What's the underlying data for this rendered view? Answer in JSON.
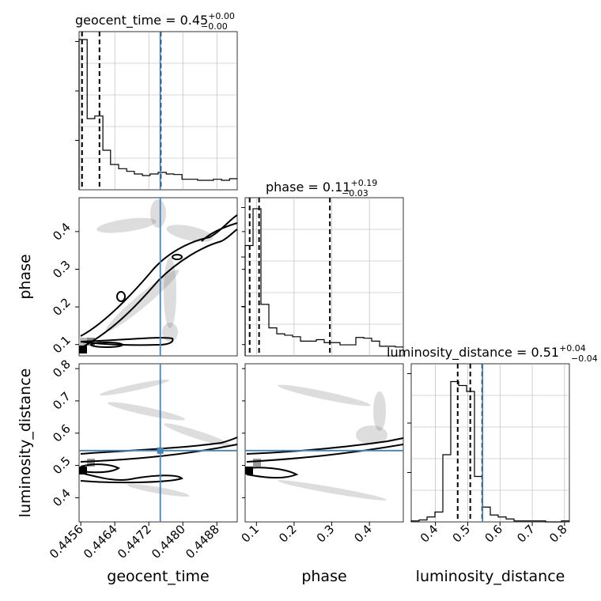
{
  "chart_data": {
    "type": "corner",
    "parameters": [
      "geocent_time",
      "phase",
      "luminosity_distance"
    ],
    "panel_titles": {
      "geocent_time": {
        "prefix": "geocent_time = 0.45",
        "plus": "+0.00",
        "minus": "−0.00"
      },
      "phase": {
        "prefix": "phase = 0.11",
        "plus": "+0.19",
        "minus": "−0.03"
      },
      "luminosity_distance": {
        "prefix": "luminosity_distance = 0.51",
        "plus": "+0.04",
        "minus": "−0.04"
      }
    },
    "axis_labels": {
      "x": [
        "geocent_time",
        "phase",
        "luminosity_distance"
      ],
      "y": [
        "phase",
        "luminosity_distance"
      ]
    },
    "ranges": {
      "geocent_time": [
        0.44556,
        0.44928
      ],
      "phase": [
        0.07,
        0.49
      ],
      "luminosity_distance": [
        0.325,
        0.815
      ]
    },
    "ticks": {
      "geocent_time": [
        "0.4456",
        "0.4464",
        "0.4472",
        "0.4480",
        "0.4488"
      ],
      "phase": [
        "0.1",
        "0.2",
        "0.3",
        "0.4"
      ],
      "luminosity_distance": [
        "0.4",
        "0.5",
        "0.6",
        "0.7",
        "0.8"
      ]
    },
    "truths": {
      "geocent_time": 0.44747,
      "phase": null,
      "luminosity_distance": 0.546
    },
    "quantiles": {
      "geocent_time": [
        0.44563,
        0.44604,
        0.44748
      ],
      "phase": [
        0.082,
        0.107,
        0.295
      ],
      "luminosity_distance": [
        0.469,
        0.508,
        0.545
      ]
    },
    "histograms": {
      "geocent_time": {
        "edges": [
          0.44556,
          0.44575,
          0.44593,
          0.44612,
          0.4463,
          0.44649,
          0.44668,
          0.44686,
          0.44705,
          0.44723,
          0.44742,
          0.44761,
          0.44779,
          0.44798,
          0.44816,
          0.44835,
          0.44854,
          0.44872,
          0.44891,
          0.4491,
          0.44928
        ],
        "counts": [
          285,
          135,
          140,
          75,
          48,
          40,
          35,
          30,
          27,
          30,
          33,
          30,
          29,
          20,
          20,
          18,
          18,
          20,
          18,
          21
        ],
        "ymax": 300
      },
      "phase": {
        "edges": [
          0.07,
          0.091,
          0.112,
          0.133,
          0.154,
          0.175,
          0.196,
          0.217,
          0.238,
          0.259,
          0.28,
          0.301,
          0.322,
          0.343,
          0.364,
          0.385,
          0.406,
          0.427,
          0.448,
          0.469,
          0.49
        ],
        "counts": [
          150,
          200,
          70,
          38,
          30,
          28,
          26,
          20,
          20,
          22,
          18,
          18,
          15,
          15,
          25,
          24,
          20,
          13,
          13,
          12
        ],
        "ymax": 215
      },
      "luminosity_distance": {
        "edges": [
          0.325,
          0.3495,
          0.374,
          0.3985,
          0.423,
          0.4475,
          0.472,
          0.4965,
          0.521,
          0.5455,
          0.57,
          0.5945,
          0.619,
          0.6435,
          0.668,
          0.6925,
          0.717,
          0.7415,
          0.766,
          0.7905,
          0.815
        ],
        "counts": [
          1,
          2,
          5,
          10,
          68,
          142,
          138,
          132,
          46,
          15,
          7,
          5,
          3,
          1,
          1,
          1,
          1,
          0,
          0,
          1
        ],
        "ymax": 160
      }
    },
    "grid": true
  }
}
